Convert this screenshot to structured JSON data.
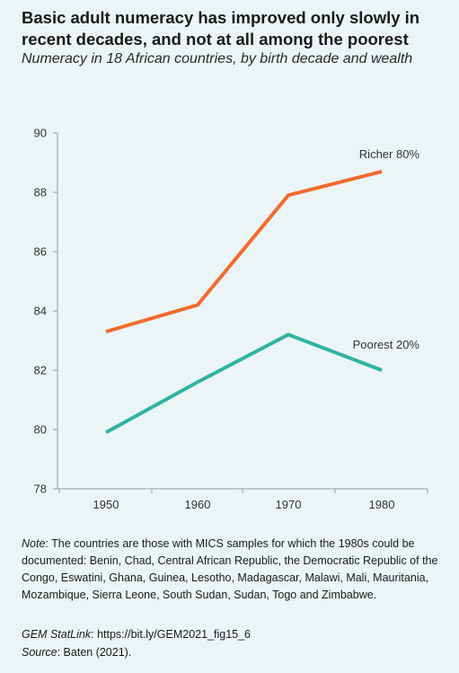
{
  "header": {
    "title": "Basic adult numeracy has improved only slowly in recent decades, and not at all among the poorest",
    "subtitle": "Numeracy in 18 African countries, by birth decade and wealth"
  },
  "chart_data": {
    "type": "line",
    "x": [
      "1950",
      "1960",
      "1970",
      "1980"
    ],
    "ylim": [
      78,
      90
    ],
    "yticks": [
      78,
      80,
      82,
      84,
      86,
      88,
      90
    ],
    "grid": false,
    "series": [
      {
        "name": "Richer 80%",
        "values": [
          83.3,
          84.2,
          87.9,
          88.7
        ],
        "color": "#f26a2e"
      },
      {
        "name": "Poorest 20%",
        "values": [
          79.9,
          81.6,
          83.2,
          82.0
        ],
        "color": "#2fb3a1"
      }
    ]
  },
  "footer": {
    "note_label": "Note",
    "note_text": ": The countries are those with MICS samples for which the 1980s could be documented: Benin, Chad, Central African Republic, the Democratic Republic of the Congo, Eswatini, Ghana, Guinea, Lesotho, Madagascar, Malawi, Mali, Mauritania, Mozambique, Sierra Leone, South Sudan, Sudan, Togo and Zimbabwe.",
    "statlink_label": "GEM StatLink",
    "statlink_text": ": https://bit.ly/GEM2021_fig15_6",
    "source_label": "Source",
    "source_text": ": Baten (2021)."
  }
}
